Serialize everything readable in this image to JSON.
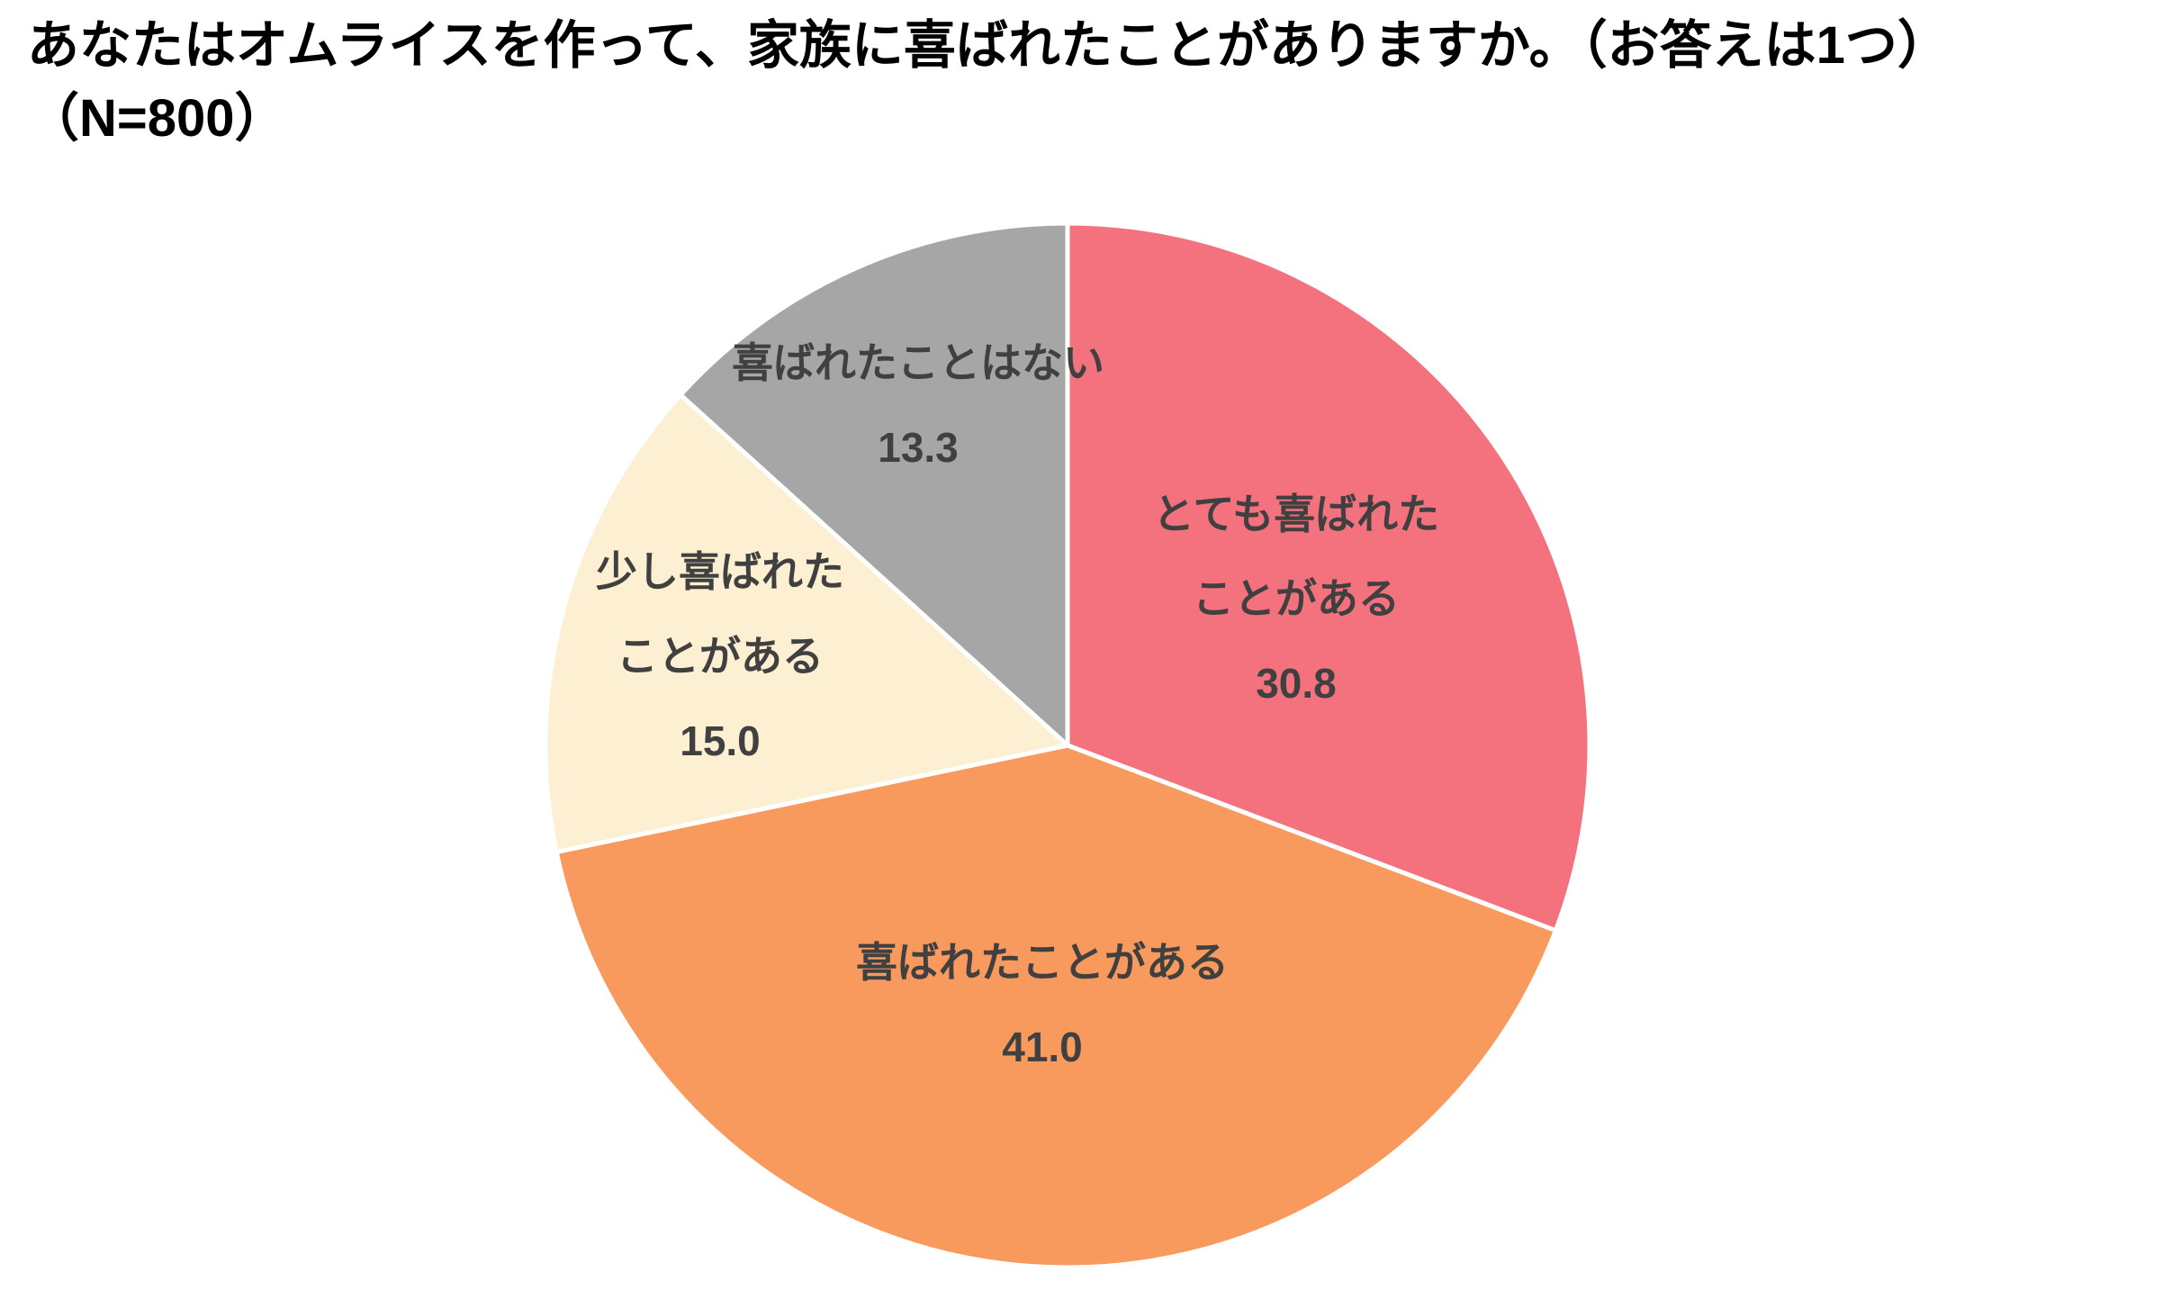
{
  "title": {
    "line1": "あなたはオムライスを作って、家族に喜ばれたことがありますか。（お答えは1つ）",
    "line2": "（N=800）"
  },
  "chart_data": {
    "type": "pie",
    "title": "あなたはオムライスを作って、家族に喜ばれたことがありますか。（お答えは1つ）",
    "sample_size_label": "（N=800）",
    "sample_size": 800,
    "start_angle_deg": 0,
    "direction": "clockwise",
    "unit": "%",
    "background": "#FFFFFF",
    "value_text_color": "#404040",
    "slice_border_color": "#FFFFFF",
    "slices": [
      {
        "label": "とても喜ばれたことがある",
        "label_lines": [
          "とても喜ばれた",
          "ことがある"
        ],
        "value": 30.8,
        "value_label": "30.8",
        "color": "#F4717E"
      },
      {
        "label": "喜ばれたことがある",
        "label_lines": [
          "喜ばれたことがある"
        ],
        "value": 41.0,
        "value_label": "41.0",
        "color": "#F89A5E"
      },
      {
        "label": "少し喜ばれたことがある",
        "label_lines": [
          "少し喜ばれた",
          "ことがある"
        ],
        "value": 15.0,
        "value_label": "15.0",
        "color": "#FCEFD2"
      },
      {
        "label": "喜ばれたことはない",
        "label_lines": [
          "喜ばれたことはない"
        ],
        "value": 13.3,
        "value_label": "13.3",
        "color": "#A6A6A6"
      }
    ]
  }
}
